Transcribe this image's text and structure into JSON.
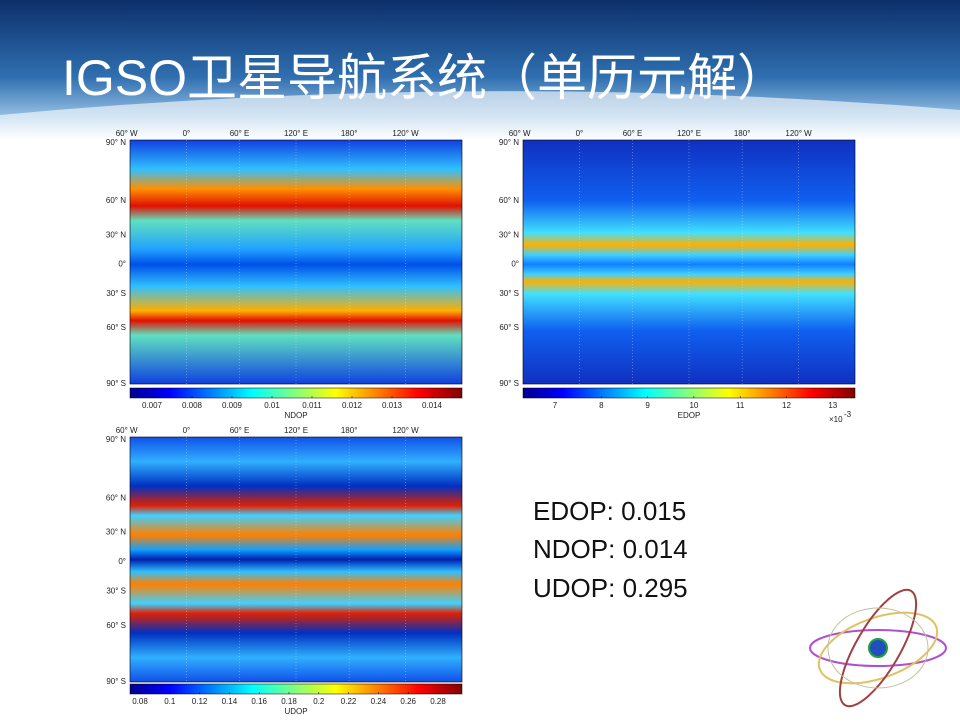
{
  "header": {
    "title": "IGSO卫星导航系统（单历元解）"
  },
  "maps": [
    {
      "lon_labels": [
        "60° W",
        "0°",
        "60° E",
        "120° E",
        "180°",
        "120° W"
      ],
      "lat_labels": [
        "90° N",
        "60° N",
        "30° N",
        "0°",
        "30° S",
        "60° S",
        "90° S"
      ],
      "colorbar": {
        "ticks": [
          "0.007",
          "0.008",
          "0.009",
          "0.01",
          "0.011",
          "0.012",
          "0.013",
          "0.014"
        ],
        "label": "NDOP"
      }
    },
    {
      "lon_labels": [
        "60° W",
        "0°",
        "60° E",
        "120° E",
        "180°",
        "120° W"
      ],
      "lat_labels": [
        "90° N",
        "60° N",
        "30° N",
        "0°",
        "30° S",
        "60° S",
        "90° S"
      ],
      "colorbar": {
        "ticks": [
          "7",
          "8",
          "9",
          "10",
          "11",
          "12",
          "13"
        ],
        "label": "EDOP",
        "scale_base": "×10",
        "scale_exp": "-3"
      }
    },
    {
      "lon_labels": [
        "60° W",
        "0°",
        "60° E",
        "120° E",
        "180°",
        "120° W"
      ],
      "lat_labels": [
        "90° N",
        "60° N",
        "30° N",
        "0°",
        "30° S",
        "60° S",
        "90° S"
      ],
      "colorbar": {
        "ticks": [
          "0.08",
          "0.1",
          "0.12",
          "0.14",
          "0.16",
          "0.18",
          "0.2",
          "0.22",
          "0.24",
          "0.26",
          "0.28"
        ],
        "label": "UDOP"
      }
    }
  ],
  "results": [
    "EDOP: 0.015",
    "NDOP:  0.014",
    "UDOP: 0.295"
  ]
}
